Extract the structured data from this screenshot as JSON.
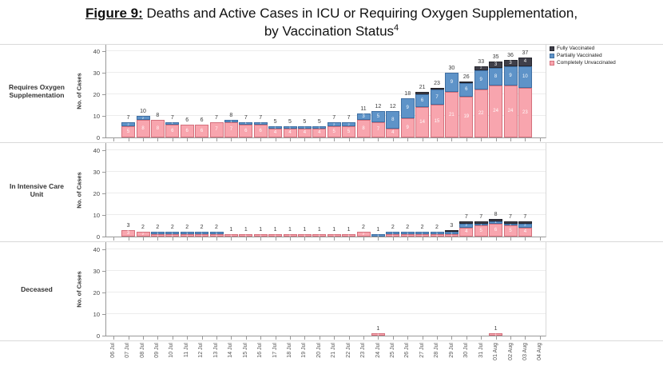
{
  "title": {
    "figure_label": "Figure 9:",
    "line1_rest": " Deaths and Active Cases in ICU or Requiring Oxygen Supplementation,",
    "line2": "by Vaccination Status",
    "footnote_ref": "4"
  },
  "legend": [
    {
      "key": "fully_vaccinated",
      "label": "Fully Vaccinated",
      "color": "#3f3f49",
      "border": "#26262e"
    },
    {
      "key": "partially_vaccinated",
      "label": "Partially Vaccinated",
      "color": "#5e93c8",
      "border": "#3f6fa3"
    },
    {
      "key": "completely_unvaccinated",
      "label": "Completely Unvaccinated",
      "color": "#f8a5ae",
      "border": "#d4707c"
    }
  ],
  "chart_data": {
    "type": "bar",
    "stacked": true,
    "grid": true,
    "ylabel": "No. of Cases",
    "yticks": [
      0,
      10,
      20,
      30,
      40
    ],
    "ylim": [
      0,
      40
    ],
    "categories": [
      "06 Jul",
      "07 Jul",
      "08 Jul",
      "09 Jul",
      "10 Jul",
      "11 Jul",
      "12 Jul",
      "13 Jul",
      "14 Jul",
      "15 Jul",
      "16 Jul",
      "17 Jul",
      "18 Jul",
      "19 Jul",
      "20 Jul",
      "21 Jul",
      "22 Jul",
      "23 Jul",
      "24 Jul",
      "25 Jul",
      "26 Jul",
      "27 Jul",
      "28 Jul",
      "29 Jul",
      "30 Jul",
      "31 Jul",
      "01 Aug",
      "02 Aug",
      "03 Aug",
      "04 Aug"
    ],
    "first_bar_slot": 1,
    "bar_dates": [
      "07 Jul",
      "08 Jul",
      "09 Jul",
      "10 Jul",
      "11 Jul",
      "12 Jul",
      "13 Jul",
      "14 Jul",
      "15 Jul",
      "16 Jul",
      "17 Jul",
      "18 Jul",
      "19 Jul",
      "20 Jul",
      "21 Jul",
      "22 Jul",
      "23 Jul",
      "24 Jul",
      "25 Jul",
      "26 Jul",
      "27 Jul",
      "28 Jul",
      "29 Jul",
      "30 Jul",
      "31 Jul",
      "01 Aug",
      "02 Aug",
      "03 Aug"
    ],
    "panels": [
      {
        "id": "requires-oxygen-supplementation",
        "label": "Requires Oxygen Supplementation",
        "totals": [
          7,
          10,
          8,
          7,
          6,
          6,
          7,
          8,
          7,
          7,
          5,
          5,
          5,
          5,
          7,
          7,
          11,
          12,
          12,
          18,
          21,
          23,
          30,
          26,
          33,
          35,
          36,
          37
        ],
        "series": [
          {
            "key": "completely_unvaccinated",
            "name": "Completely Unvaccinated",
            "values": [
              5,
              8,
              8,
              6,
              6,
              6,
              7,
              7,
              6,
              6,
              4,
              4,
              4,
              4,
              5,
              5,
              8,
              7,
              4,
              9,
              14,
              15,
              21,
              19,
              22,
              24,
              24,
              23
            ]
          },
          {
            "key": "partially_vaccinated",
            "name": "Partially Vaccinated",
            "values": [
              2,
              2,
              0,
              1,
              0,
              0,
              0,
              1,
              1,
              1,
              1,
              1,
              1,
              1,
              2,
              2,
              3,
              5,
              8,
              9,
              6,
              7,
              9,
              6,
              9,
              8,
              9,
              10
            ]
          },
          {
            "key": "fully_vaccinated",
            "name": "Fully Vaccinated",
            "values": [
              0,
              0,
              0,
              0,
              0,
              0,
              0,
              0,
              0,
              0,
              0,
              0,
              0,
              0,
              0,
              0,
              0,
              0,
              0,
              0,
              1,
              1,
              0,
              1,
              2,
              3,
              3,
              4
            ]
          }
        ]
      },
      {
        "id": "in-intensive-care-unit",
        "label": "In Intensive Care Unit",
        "totals": [
          3,
          2,
          2,
          2,
          2,
          2,
          2,
          1,
          1,
          1,
          1,
          1,
          1,
          1,
          1,
          1,
          2,
          1,
          2,
          2,
          2,
          2,
          3,
          7,
          7,
          8,
          7,
          7
        ],
        "series": [
          {
            "key": "completely_unvaccinated",
            "name": "Completely Unvaccinated",
            "values": [
              3,
              2,
              1,
              1,
              1,
              1,
              1,
              1,
              1,
              1,
              1,
              1,
              1,
              1,
              1,
              1,
              2,
              0,
              1,
              1,
              1,
              1,
              1,
              4,
              5,
              6,
              5,
              4
            ]
          },
          {
            "key": "partially_vaccinated",
            "name": "Partially Vaccinated",
            "values": [
              0,
              0,
              1,
              1,
              1,
              1,
              1,
              0,
              0,
              0,
              0,
              0,
              0,
              0,
              0,
              0,
              0,
              1,
              1,
              1,
              1,
              1,
              1,
              2,
              1,
              1,
              1,
              2
            ]
          },
          {
            "key": "fully_vaccinated",
            "name": "Fully Vaccinated",
            "values": [
              0,
              0,
              0,
              0,
              0,
              0,
              0,
              0,
              0,
              0,
              0,
              0,
              0,
              0,
              0,
              0,
              0,
              0,
              0,
              0,
              0,
              0,
              1,
              1,
              1,
              1,
              1,
              1
            ]
          }
        ]
      },
      {
        "id": "deceased",
        "label": "Deceased",
        "totals": [
          0,
          0,
          0,
          0,
          0,
          0,
          0,
          0,
          0,
          0,
          0,
          0,
          0,
          0,
          0,
          0,
          0,
          1,
          0,
          0,
          0,
          0,
          0,
          0,
          0,
          1,
          0,
          0
        ],
        "series": [
          {
            "key": "completely_unvaccinated",
            "name": "Completely Unvaccinated",
            "values": [
              0,
              0,
              0,
              0,
              0,
              0,
              0,
              0,
              0,
              0,
              0,
              0,
              0,
              0,
              0,
              0,
              0,
              1,
              0,
              0,
              0,
              0,
              0,
              0,
              0,
              1,
              0,
              0
            ]
          },
          {
            "key": "partially_vaccinated",
            "name": "Partially Vaccinated",
            "values": [
              0,
              0,
              0,
              0,
              0,
              0,
              0,
              0,
              0,
              0,
              0,
              0,
              0,
              0,
              0,
              0,
              0,
              0,
              0,
              0,
              0,
              0,
              0,
              0,
              0,
              0,
              0,
              0
            ]
          },
          {
            "key": "fully_vaccinated",
            "name": "Fully Vaccinated",
            "values": [
              0,
              0,
              0,
              0,
              0,
              0,
              0,
              0,
              0,
              0,
              0,
              0,
              0,
              0,
              0,
              0,
              0,
              0,
              0,
              0,
              0,
              0,
              0,
              0,
              0,
              0,
              0,
              0
            ]
          }
        ]
      }
    ]
  }
}
